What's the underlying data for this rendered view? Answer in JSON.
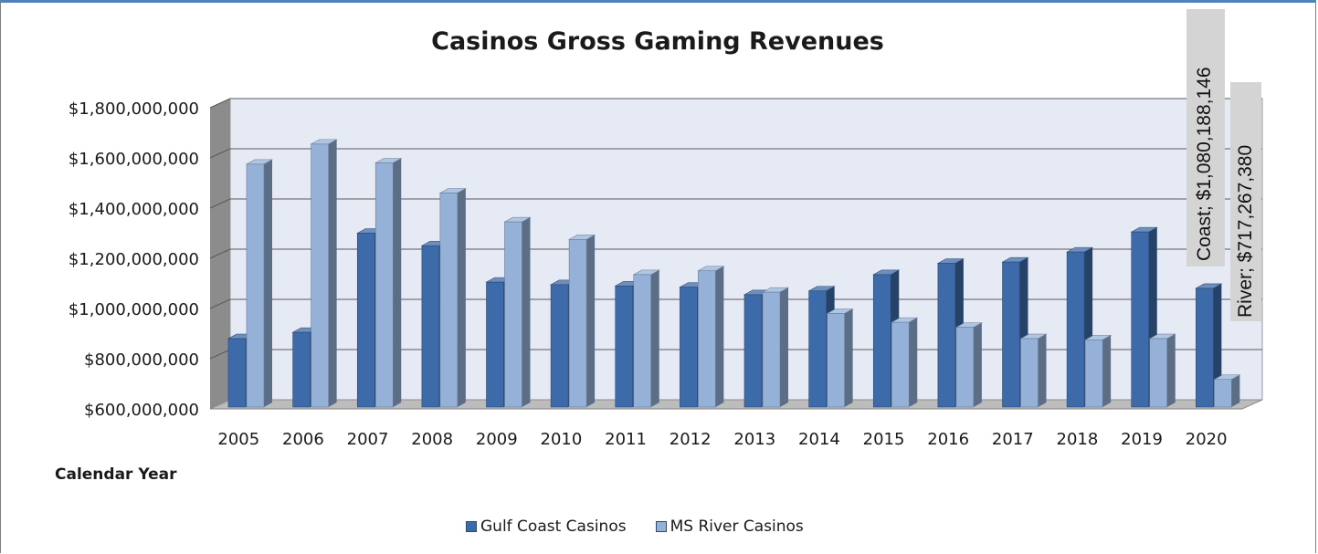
{
  "chart_data": {
    "type": "bar",
    "title": "Casinos Gross Gaming Revenues",
    "xlabel": "Calendar Year",
    "ylabel": "",
    "ylim": [
      600000000,
      1800000000
    ],
    "yticks": [
      "$600,000,000",
      "$800,000,000",
      "$1,000,000,000",
      "$1,200,000,000",
      "$1,400,000,000",
      "$1,600,000,000",
      "$1,800,000,000"
    ],
    "categories": [
      "2005",
      "2006",
      "2007",
      "2008",
      "2009",
      "2010",
      "2011",
      "2012",
      "2013",
      "2014",
      "2015",
      "2016",
      "2017",
      "2018",
      "2019",
      "2020"
    ],
    "series": [
      {
        "name": "Gulf Coast Casinos",
        "color": "#3d6aa8",
        "values": [
          880000000,
          905000000,
          1300000000,
          1250000000,
          1105000000,
          1095000000,
          1090000000,
          1085000000,
          1055000000,
          1070000000,
          1135000000,
          1180000000,
          1185000000,
          1225000000,
          1305000000,
          1080188146
        ]
      },
      {
        "name": "MS River Casinos",
        "color": "#95b1d8",
        "values": [
          1575000000,
          1655000000,
          1580000000,
          1460000000,
          1345000000,
          1275000000,
          1135000000,
          1150000000,
          1065000000,
          980000000,
          945000000,
          925000000,
          880000000,
          875000000,
          880000000,
          717267380
        ]
      }
    ],
    "grid": true,
    "legend": "bottom",
    "annotations": [
      "Coast; $1,080,188,146",
      "River; $717,267,380"
    ]
  }
}
